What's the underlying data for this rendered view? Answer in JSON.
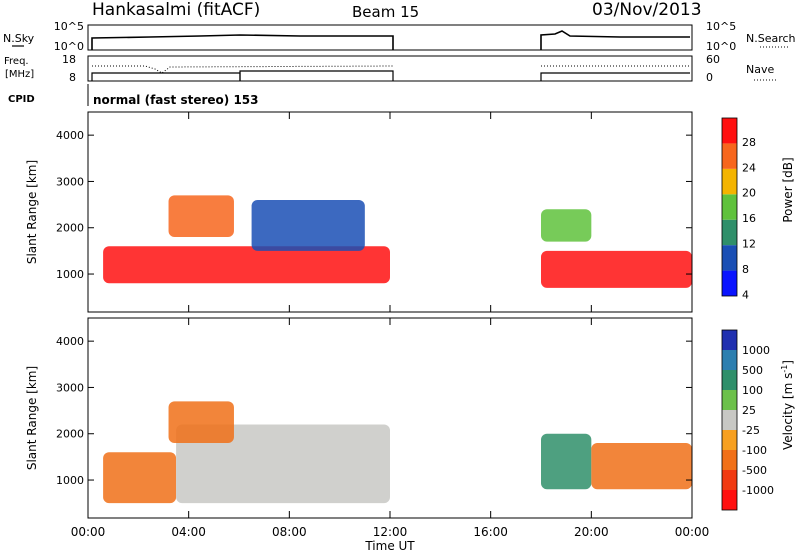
{
  "header": {
    "title": "Hankasalmi (fitACF)",
    "beam": "Beam 15",
    "date": "03/Nov/2013"
  },
  "nsky_panel": {
    "left_label": "N.Sky",
    "left_ticks": [
      "10^5",
      "10^0"
    ],
    "right_label": "N.Search",
    "right_ticks": [
      "10^5",
      "10^0"
    ]
  },
  "freq_panel": {
    "left_label": "Freq.",
    "left_unit": "[MHz]",
    "left_ticks": [
      "18",
      "8"
    ],
    "right_label": "Nave",
    "right_ticks": [
      "60",
      "0"
    ]
  },
  "cpid": {
    "label": "CPID",
    "value": "normal (fast stereo) 153"
  },
  "chart_data": [
    {
      "type": "heatmap",
      "name": "Power",
      "ylabel": "Slant Range [km]",
      "ylim": [
        180,
        4500
      ],
      "y_ticks": [
        "4000",
        "3000",
        "2000",
        "1000"
      ],
      "x_ticks": [
        "00:00",
        "04:00",
        "08:00",
        "12:00",
        "16:00",
        "20:00",
        "00:00"
      ],
      "xlim_hours": [
        0,
        24
      ],
      "data_gaps_hours": [
        [
          12.0,
          18.0
        ]
      ],
      "colorbar": {
        "label": "Power [dB]",
        "ticks": [
          "28",
          "24",
          "20",
          "16",
          "12",
          "8",
          "4"
        ],
        "colors_bottom_to_top": [
          "#0a14ff",
          "#1a4fb5",
          "#2f8f6a",
          "#5fc23c",
          "#f4b400",
          "#f7661d",
          "#ff1010"
        ]
      },
      "regions": [
        {
          "t": [
            0.6,
            12.0
          ],
          "range": [
            800,
            1600
          ],
          "level": "#ff1010"
        },
        {
          "t": [
            3.2,
            5.8
          ],
          "range": [
            1800,
            2700
          ],
          "level": "#f7661d"
        },
        {
          "t": [
            6.5,
            11.0
          ],
          "range": [
            1500,
            2600
          ],
          "level": "#1a4fb5"
        },
        {
          "t": [
            18.0,
            24.0
          ],
          "range": [
            700,
            1500
          ],
          "level": "#ff1010"
        },
        {
          "t": [
            18.0,
            20.0
          ],
          "range": [
            1700,
            2400
          ],
          "level": "#5fc23c"
        }
      ]
    },
    {
      "type": "heatmap",
      "name": "Velocity",
      "ylabel": "Slant Range [km]",
      "ylim": [
        180,
        4500
      ],
      "y_ticks": [
        "4000",
        "3000",
        "2000",
        "1000"
      ],
      "x_ticks": [
        "00:00",
        "04:00",
        "08:00",
        "12:00",
        "16:00",
        "20:00",
        "00:00"
      ],
      "xlabel": "Time UT",
      "xlim_hours": [
        0,
        24
      ],
      "data_gaps_hours": [
        [
          12.0,
          18.0
        ]
      ],
      "colorbar": {
        "label": "Velocity [m s",
        "label_sup": "-1",
        "label_end": "]",
        "ticks": [
          "1000",
          "500",
          "100",
          "25",
          "-25",
          "-100",
          "-500",
          "-1000"
        ],
        "colors_top_to_bottom": [
          "#2030b0",
          "#2c7fb0",
          "#2f8f6a",
          "#6cc04a",
          "#c8c8c4",
          "#f7a020",
          "#f07018",
          "#f03a12",
          "#ff1010"
        ]
      },
      "regions": [
        {
          "t": [
            0.6,
            3.5
          ],
          "range": [
            500,
            1600
          ],
          "level": "#f07018"
        },
        {
          "t": [
            3.5,
            12.0
          ],
          "range": [
            500,
            2200
          ],
          "level": "#c8c8c4"
        },
        {
          "t": [
            3.2,
            5.8
          ],
          "range": [
            1800,
            2700
          ],
          "level": "#f07018"
        },
        {
          "t": [
            18.0,
            20.0
          ],
          "range": [
            800,
            2000
          ],
          "level": "#2f8f6a"
        },
        {
          "t": [
            20.0,
            24.0
          ],
          "range": [
            800,
            1800
          ],
          "level": "#f07018"
        }
      ]
    }
  ]
}
